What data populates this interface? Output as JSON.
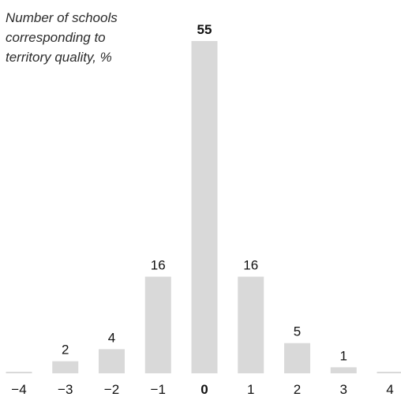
{
  "chart_data": {
    "type": "bar",
    "ylabel_lines": [
      "Number of schools",
      "corresponding to",
      "territory quality, %"
    ],
    "categories": [
      "−4",
      "−3",
      "−2",
      "−1",
      "0",
      "1",
      "2",
      "3",
      "4"
    ],
    "values": [
      0,
      2,
      4,
      16,
      55,
      16,
      5,
      1,
      0
    ],
    "value_labels": [
      "",
      "2",
      "4",
      "16",
      "55",
      "16",
      "5",
      "1",
      ""
    ],
    "highlight_category": "0",
    "bar_color": "#d9d9d9",
    "text_color": "#111111",
    "ylim": [
      0,
      55
    ],
    "grid": false,
    "legend": "none"
  }
}
